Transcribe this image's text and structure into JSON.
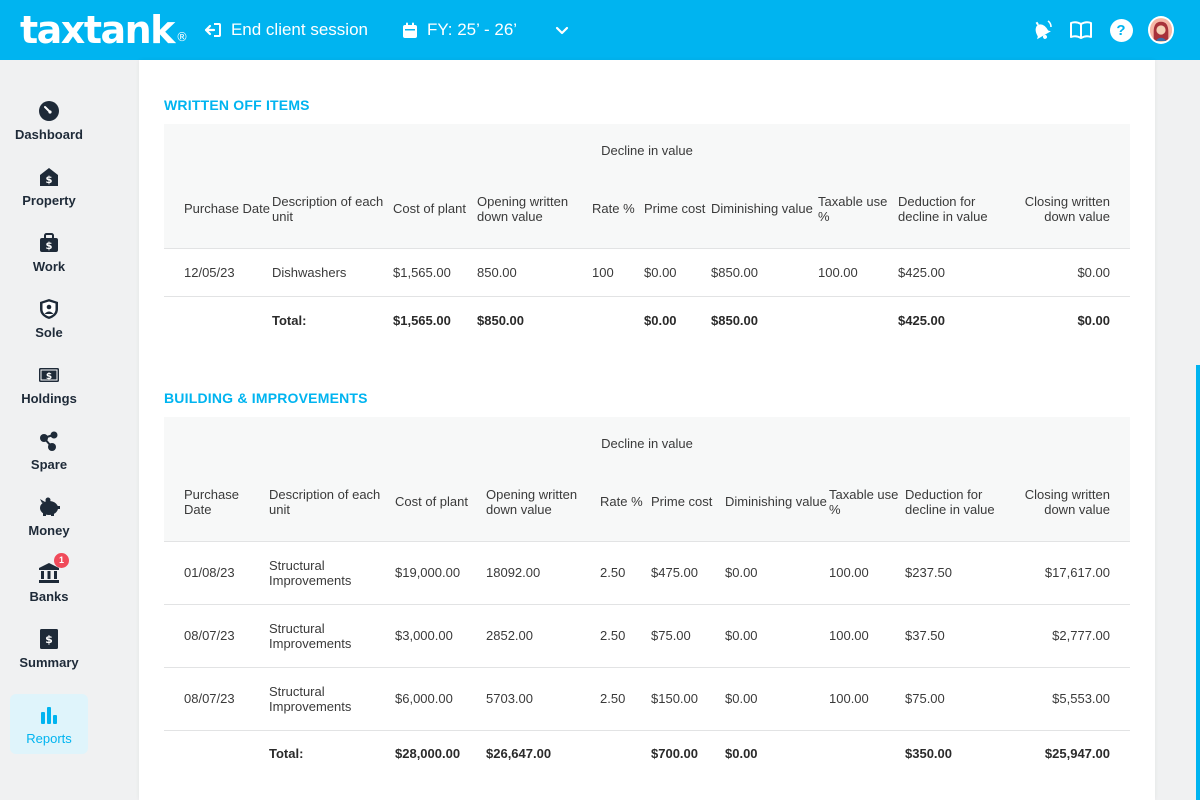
{
  "header": {
    "logo_text": "taxtank",
    "logo_mark": "®",
    "end_session_label": "End client session",
    "fy_label": "FY: 25’ - 26’",
    "brand_color": "#00b4f0"
  },
  "sidebar": {
    "items": [
      {
        "label": "Dashboard",
        "icon": "dashboard-gauge-icon"
      },
      {
        "label": "Property",
        "icon": "house-dollar-icon"
      },
      {
        "label": "Work",
        "icon": "briefcase-dollar-icon"
      },
      {
        "label": "Sole",
        "icon": "shield-person-icon"
      },
      {
        "label": "Holdings",
        "icon": "banknote-icon"
      },
      {
        "label": "Spare",
        "icon": "molecule-icon"
      },
      {
        "label": "Money",
        "icon": "piggy-bank-icon"
      },
      {
        "label": "Banks",
        "icon": "bank-icon",
        "badge": "1"
      },
      {
        "label": "Summary",
        "icon": "summary-dollar-icon"
      },
      {
        "label": "Reports",
        "icon": "bar-chart-icon",
        "active": true
      }
    ]
  },
  "written_off": {
    "title": "WRITTEN OFF ITEMS",
    "group_header": "Decline in value",
    "columns": [
      "Purchase Date",
      "Description of each unit",
      "Cost of plant",
      "Opening written down value",
      "Rate %",
      "Prime cost",
      "Diminishing value",
      "Taxable use %",
      "Deduction for decline in value",
      "Closing written down value"
    ],
    "rows": [
      [
        "12/05/23",
        "Dishwashers",
        "$1,565.00",
        "850.00",
        "100",
        "$0.00",
        "$850.00",
        "100.00",
        "$425.00",
        "$0.00"
      ]
    ],
    "total": {
      "label": "Total:",
      "cost": "$1,565.00",
      "opening": "$850.00",
      "prime": "$0.00",
      "diminishing": "$850.00",
      "deduction": "$425.00",
      "closing": "$0.00"
    }
  },
  "building": {
    "title": "BUILDING & IMPROVEMENTS",
    "group_header": "Decline in value",
    "columns": [
      "Purchase Date",
      "Description of each unit",
      "Cost of plant",
      "Opening written down value",
      "Rate %",
      "Prime cost",
      "Diminishing value",
      "Taxable use %",
      "Deduction for decline in value",
      "Closing written down value"
    ],
    "rows": [
      [
        "01/08/23",
        "Structural Improvements",
        "$19,000.00",
        "18092.00",
        "2.50",
        "$475.00",
        "$0.00",
        "100.00",
        "$237.50",
        "$17,617.00"
      ],
      [
        "08/07/23",
        "Structural Improvements",
        "$3,000.00",
        "2852.00",
        "2.50",
        "$75.00",
        "$0.00",
        "100.00",
        "$37.50",
        "$2,777.00"
      ],
      [
        "08/07/23",
        "Structural Improvements",
        "$6,000.00",
        "5703.00",
        "2.50",
        "$150.00",
        "$0.00",
        "100.00",
        "$75.00",
        "$5,553.00"
      ]
    ],
    "total": {
      "label": "Total:",
      "cost": "$28,000.00",
      "opening": "$26,647.00",
      "prime": "$700.00",
      "diminishing": "$0.00",
      "deduction": "$350.00",
      "closing": "$25,947.00"
    }
  }
}
